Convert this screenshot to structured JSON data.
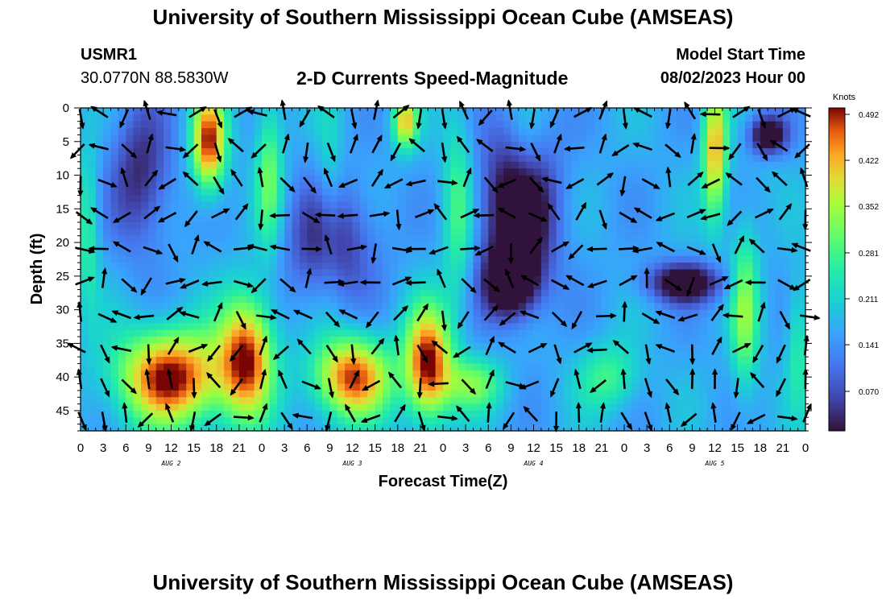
{
  "header": {
    "title": "University of Southern Mississippi Ocean Cube (AMSEAS)",
    "station_id": "USMR1",
    "coordinates": "30.0770N  88.5830W",
    "subtitle": "2-D Currents Speed-Magnitude",
    "model_start_label": "Model Start Time",
    "model_start_value": "08/02/2023 Hour 00"
  },
  "footer": {
    "title": "University of Southern Mississippi Ocean Cube (AMSEAS)"
  },
  "chart_data": {
    "type": "heatmap",
    "title": "2-D Currents Speed-Magnitude",
    "xlabel": "Forecast Time(Z)",
    "ylabel": "Depth (ft)",
    "x_ticks": [
      "0",
      "3",
      "6",
      "9",
      "12",
      "15",
      "18",
      "21",
      "0",
      "3",
      "6",
      "9",
      "12",
      "15",
      "18",
      "21",
      "0",
      "3",
      "6",
      "9",
      "12",
      "15",
      "18",
      "21",
      "0",
      "3",
      "6",
      "9",
      "12",
      "15",
      "18",
      "21",
      "0"
    ],
    "day_labels": [
      "AUG 2",
      "AUG 3",
      "AUG 4",
      "AUG 5"
    ],
    "y_ticks": [
      0,
      5,
      10,
      15,
      20,
      25,
      30,
      35,
      40,
      45
    ],
    "ylim": [
      0,
      48
    ],
    "xlim_hours": [
      0,
      96
    ],
    "colorbar": {
      "label": "Knots",
      "ticks": [
        "0.492",
        "0.422",
        "0.352",
        "0.281",
        "0.211",
        "0.141",
        "0.070"
      ],
      "range": [
        0,
        0.492
      ]
    },
    "speed_regions": [
      {
        "center_hour": 1,
        "center_depth": 18,
        "speed": 0.26,
        "spread_hours": 1.5,
        "spread_depth": 12
      },
      {
        "center_hour": 17,
        "center_depth": 5,
        "speed": 0.48,
        "spread_hours": 2.2,
        "spread_depth": 7
      },
      {
        "center_hour": 12,
        "center_depth": 40,
        "speed": 0.5,
        "spread_hours": 7,
        "spread_depth": 7
      },
      {
        "center_hour": 22,
        "center_depth": 37,
        "speed": 0.47,
        "spread_hours": 3.5,
        "spread_depth": 9
      },
      {
        "center_hour": 25,
        "center_depth": 10,
        "speed": 0.3,
        "spread_hours": 1.8,
        "spread_depth": 12
      },
      {
        "center_hour": 33,
        "center_depth": 12,
        "speed": 0.22,
        "spread_hours": 1.8,
        "spread_depth": 14
      },
      {
        "center_hour": 36,
        "center_depth": 40,
        "speed": 0.47,
        "spread_hours": 5,
        "spread_depth": 6
      },
      {
        "center_hour": 43,
        "center_depth": 2,
        "speed": 0.4,
        "spread_hours": 1.6,
        "spread_depth": 4
      },
      {
        "center_hour": 46,
        "center_depth": 38,
        "speed": 0.5,
        "spread_hours": 3,
        "spread_depth": 8
      },
      {
        "center_hour": 50,
        "center_depth": 15,
        "speed": 0.28,
        "spread_hours": 2,
        "spread_depth": 14
      },
      {
        "center_hour": 52,
        "center_depth": 41,
        "speed": 0.3,
        "spread_hours": 4,
        "spread_depth": 4
      },
      {
        "center_hour": 59,
        "center_depth": 6,
        "speed": 0.22,
        "spread_hours": 2.5,
        "spread_depth": 8
      },
      {
        "center_hour": 70,
        "center_depth": 40,
        "speed": 0.27,
        "spread_hours": 4,
        "spread_depth": 5
      },
      {
        "center_hour": 84,
        "center_depth": 6,
        "speed": 0.42,
        "spread_hours": 1.6,
        "spread_depth": 10
      },
      {
        "center_hour": 88,
        "center_depth": 30,
        "speed": 0.32,
        "spread_hours": 1.8,
        "spread_depth": 12
      },
      {
        "center_hour": 91,
        "center_depth": 9,
        "speed": 0.17,
        "spread_hours": 2,
        "spread_depth": 4
      },
      {
        "center_hour": 95,
        "center_depth": 35,
        "speed": 0.25,
        "spread_hours": 1.5,
        "spread_depth": 10
      },
      {
        "center_hour": 8,
        "center_depth": 10,
        "speed": 0.02,
        "spread_hours": 4,
        "spread_depth": 11
      },
      {
        "center_hour": 33,
        "center_depth": 20,
        "speed": 0.02,
        "spread_hours": 6,
        "spread_depth": 9
      },
      {
        "center_hour": 58,
        "center_depth": 15,
        "speed": -0.07,
        "spread_hours": 5,
        "spread_depth": 12
      },
      {
        "center_hour": 57,
        "center_depth": 26,
        "speed": -0.06,
        "spread_hours": 3.5,
        "spread_depth": 5
      },
      {
        "center_hour": 80,
        "center_depth": 26,
        "speed": -0.05,
        "spread_hours": 5,
        "spread_depth": 3
      },
      {
        "center_hour": 91,
        "center_depth": 4,
        "speed": -0.06,
        "spread_hours": 2.5,
        "spread_depth": 3
      }
    ],
    "vector_columns_hours": [
      0,
      3,
      6,
      9,
      12,
      15,
      18,
      21,
      24,
      27,
      30,
      33,
      36,
      39,
      42,
      45,
      48,
      51,
      54,
      57,
      60,
      63,
      66,
      69,
      72,
      75,
      78,
      81,
      84,
      87,
      90,
      93,
      96
    ],
    "vector_rows_depth": [
      0,
      5,
      10,
      15,
      20,
      25,
      30,
      35,
      40,
      45
    ]
  }
}
